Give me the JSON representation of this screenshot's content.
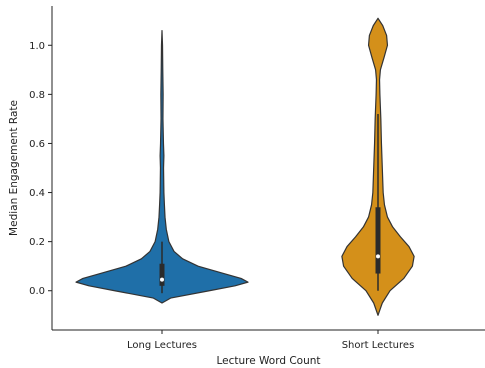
{
  "chart_data": {
    "type": "violin",
    "xlabel": "Lecture Word Count",
    "ylabel": "Median Engagement Rate",
    "ylim": [
      -0.16,
      1.16
    ],
    "yticks": [
      0.0,
      0.2,
      0.4,
      0.6,
      0.8,
      1.0
    ],
    "ytick_labels": [
      "0.0",
      "0.2",
      "0.4",
      "0.6",
      "0.8",
      "1.0"
    ],
    "categories": [
      "Long Lectures",
      "Short Lectures"
    ],
    "series": [
      {
        "category": "Long Lectures",
        "color": "#1f6fa8",
        "kde_range": [
          -0.05,
          1.06
        ],
        "density_profile": [
          [
            -0.05,
            0.0
          ],
          [
            -0.03,
            0.1
          ],
          [
            0.0,
            0.55
          ],
          [
            0.02,
            0.85
          ],
          [
            0.035,
            1.0
          ],
          [
            0.05,
            0.92
          ],
          [
            0.07,
            0.72
          ],
          [
            0.1,
            0.42
          ],
          [
            0.13,
            0.24
          ],
          [
            0.16,
            0.14
          ],
          [
            0.2,
            0.08
          ],
          [
            0.25,
            0.05
          ],
          [
            0.3,
            0.035
          ],
          [
            0.35,
            0.028
          ],
          [
            0.4,
            0.022
          ],
          [
            0.5,
            0.018
          ],
          [
            0.55,
            0.022
          ],
          [
            0.6,
            0.017
          ],
          [
            0.7,
            0.011
          ],
          [
            0.8,
            0.013
          ],
          [
            0.9,
            0.009
          ],
          [
            1.0,
            0.006
          ],
          [
            1.06,
            0.0
          ]
        ],
        "q1": 0.02,
        "median": 0.045,
        "q3": 0.11,
        "whisker_low": -0.01,
        "whisker_high": 0.2
      },
      {
        "category": "Short Lectures",
        "color": "#d4901a",
        "kde_range": [
          -0.1,
          1.11
        ],
        "density_profile": [
          [
            -0.1,
            0.0
          ],
          [
            -0.05,
            0.05
          ],
          [
            0.0,
            0.14
          ],
          [
            0.05,
            0.3
          ],
          [
            0.1,
            0.4
          ],
          [
            0.14,
            0.42
          ],
          [
            0.18,
            0.36
          ],
          [
            0.22,
            0.26
          ],
          [
            0.26,
            0.17
          ],
          [
            0.3,
            0.11
          ],
          [
            0.35,
            0.075
          ],
          [
            0.4,
            0.06
          ],
          [
            0.5,
            0.05
          ],
          [
            0.6,
            0.04
          ],
          [
            0.7,
            0.033
          ],
          [
            0.8,
            0.022
          ],
          [
            0.86,
            0.018
          ],
          [
            0.9,
            0.028
          ],
          [
            0.95,
            0.07
          ],
          [
            1.0,
            0.11
          ],
          [
            1.04,
            0.1
          ],
          [
            1.08,
            0.055
          ],
          [
            1.11,
            0.0
          ]
        ],
        "q1": 0.07,
        "median": 0.14,
        "q3": 0.34,
        "whisker_low": 0.0,
        "whisker_high": 0.72
      }
    ]
  }
}
